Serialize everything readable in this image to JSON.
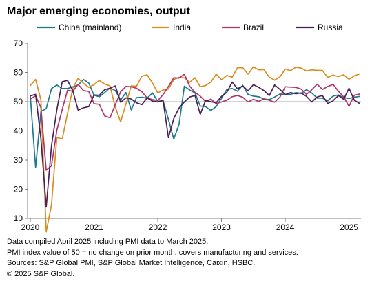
{
  "title": "Major emerging economies, output",
  "footnotes": [
    "Data compiled April 2025 including PMI data to March 2025.",
    "PMI index value of 50 = no change on prior month, covers manufacturing and services.",
    "Sources: S&P Global PMI, S&P Global Market Intelligence, Caixin, HSBC.",
    "© 2025 S&P Global."
  ],
  "chart_data": {
    "type": "line",
    "title": "Major emerging economies, output",
    "xlabel": "",
    "ylabel": "",
    "x_ticks": [
      "2020",
      "2021",
      "2022",
      "2023",
      "2024",
      "2025"
    ],
    "x_start": "2020-01",
    "x_end": "2025-03",
    "ylim": [
      10,
      70
    ],
    "y_ticks": [
      10,
      20,
      30,
      40,
      50,
      60,
      70
    ],
    "grid": false,
    "reference_line": 50,
    "legend_position": "top",
    "series": [
      {
        "name": "China (mainland)",
        "color": "#1a7a8c",
        "values": [
          51.9,
          27.5,
          46.7,
          47.6,
          54.5,
          55.7,
          54.5,
          54.5,
          55.1,
          55.7,
          57.6,
          56.4,
          52.2,
          51.7,
          53.1,
          54.7,
          53.8,
          50.6,
          53.1,
          47.2,
          51.4,
          51.5,
          51.2,
          53.0,
          50.1,
          50.4,
          43.9,
          37.2,
          42.2,
          55.3,
          54.0,
          53.0,
          48.5,
          48.3,
          47.0,
          48.3,
          51.1,
          54.2,
          54.5,
          53.6,
          55.6,
          52.5,
          51.9,
          51.7,
          50.9,
          50.7,
          51.6,
          52.6,
          52.5,
          52.5,
          53.1,
          52.8,
          54.1,
          53.0,
          51.2,
          51.2,
          50.3,
          51.9,
          52.3,
          51.4,
          51.1,
          51.5,
          51.8
        ]
      },
      {
        "name": "India",
        "color": "#d98c1f",
        "values": [
          55.5,
          57.6,
          50.6,
          5.4,
          14.8,
          37.8,
          37.2,
          46.0,
          54.6,
          58.0,
          56.3,
          54.9,
          55.8,
          57.3,
          56.0,
          55.4,
          48.1,
          43.1,
          49.2,
          55.4,
          55.3,
          58.7,
          59.2,
          56.4,
          53.0,
          54.0,
          54.3,
          57.6,
          58.3,
          58.2,
          56.6,
          58.2,
          55.1,
          55.5,
          56.7,
          59.4,
          57.5,
          59.0,
          58.4,
          61.6,
          61.6,
          59.4,
          61.9,
          60.9,
          61.0,
          58.4,
          57.4,
          58.5,
          61.2,
          60.6,
          61.8,
          61.5,
          60.5,
          60.9,
          60.7,
          60.7,
          58.3,
          59.1,
          58.6,
          59.2,
          57.7,
          58.8,
          59.5
        ]
      },
      {
        "name": "Brazil",
        "color": "#b0336b",
        "values": [
          50.9,
          52.0,
          47.9,
          26.5,
          28.1,
          40.2,
          47.3,
          53.9,
          53.6,
          55.9,
          53.8,
          53.5,
          49.3,
          49.1,
          45.1,
          44.5,
          49.0,
          53.4,
          55.2,
          55.1,
          54.6,
          53.4,
          51.3,
          50.7,
          50.4,
          52.4,
          55.2,
          58.2,
          58.1,
          59.4,
          55.3,
          53.2,
          51.9,
          50.0,
          50.9,
          49.3,
          49.9,
          50.5,
          51.7,
          52.1,
          51.5,
          49.9,
          50.8,
          50.1,
          51.0,
          50.5,
          49.8,
          51.6,
          55.1,
          55.0,
          54.9,
          54.3,
          52.5,
          54.1,
          56.0,
          54.2,
          55.2,
          55.9,
          53.6,
          51.6,
          48.4,
          52.2,
          52.6
        ]
      },
      {
        "name": "Russia",
        "color": "#4b1f57",
        "values": [
          52.0,
          52.5,
          37.2,
          13.9,
          35.0,
          47.2,
          56.8,
          57.3,
          53.7,
          47.1,
          47.9,
          48.3,
          52.3,
          52.2,
          54.1,
          54.6,
          55.4,
          49.8,
          51.3,
          50.9,
          49.6,
          49.0,
          51.3,
          50.2,
          49.9,
          50.4,
          37.7,
          44.2,
          47.8,
          49.9,
          51.6,
          52.1,
          45.7,
          50.4,
          50.0,
          49.6,
          51.8,
          53.2,
          56.7,
          54.4,
          55.4,
          53.7,
          55.8,
          54.9,
          53.8,
          52.1,
          55.7,
          54.2,
          52.4,
          53.1,
          52.7,
          53.0,
          51.8,
          49.9,
          51.6,
          52.1,
          49.4,
          50.3,
          52.1,
          50.8,
          54.6,
          50.5,
          49.4
        ]
      }
    ]
  }
}
